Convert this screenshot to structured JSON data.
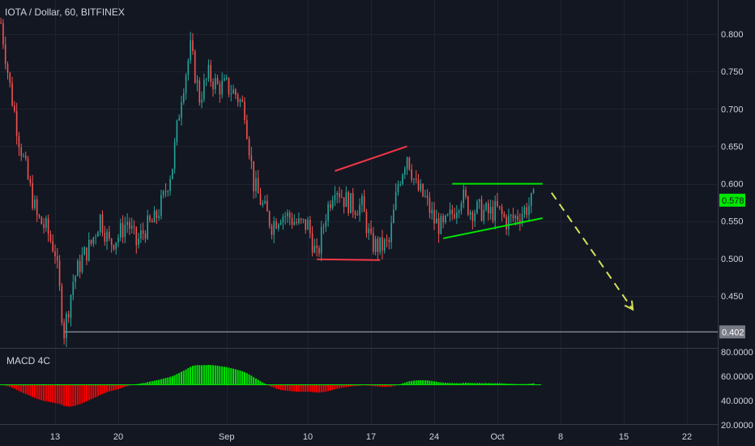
{
  "header": {
    "symbol_title": "IOTA / Dollar, 60, BITFINEX"
  },
  "chart_data": [
    {
      "type": "candlestick",
      "title": "IOTA / Dollar, 60, BITFINEX",
      "ylim": [
        0.375,
        0.827
      ],
      "y_ticks": [
        "0.800",
        "0.750",
        "0.700",
        "0.650",
        "0.600",
        "0.550",
        "0.500",
        "0.450"
      ],
      "x_ticks": [
        "13",
        "20",
        "Sep",
        "10",
        "17",
        "24",
        "Oct",
        "8",
        "15",
        "22"
      ],
      "grid": true,
      "price_path": [
        [
          "Aug 7",
          0.815
        ],
        [
          "Aug 8",
          0.73
        ],
        [
          "Aug 9",
          0.66
        ],
        [
          "Aug 10",
          0.605
        ],
        [
          "Aug 11",
          0.555
        ],
        [
          "Aug 12",
          0.54
        ],
        [
          "Aug 13",
          0.51
        ],
        [
          "Aug 14",
          0.402
        ],
        [
          "Aug 15",
          0.47
        ],
        [
          "Aug 16",
          0.5
        ],
        [
          "Aug 17",
          0.52
        ],
        [
          "Aug 18",
          0.555
        ],
        [
          "Aug 19",
          0.52
        ],
        [
          "Aug 20",
          0.53
        ],
        [
          "Aug 21",
          0.55
        ],
        [
          "Aug 22",
          0.52
        ],
        [
          "Aug 23",
          0.54
        ],
        [
          "Aug 24",
          0.55
        ],
        [
          "Aug 25",
          0.58
        ],
        [
          "Aug 26",
          0.625
        ],
        [
          "Aug 27",
          0.72
        ],
        [
          "Aug 28",
          0.78
        ],
        [
          "Aug 29",
          0.715
        ],
        [
          "Aug 30",
          0.745
        ],
        [
          "Aug 31",
          0.73
        ],
        [
          "Sep 1",
          0.73
        ],
        [
          "Sep 2",
          0.72
        ],
        [
          "Sep 3",
          0.7
        ],
        [
          "Sep 4",
          0.6
        ],
        [
          "Sep 5",
          0.57
        ],
        [
          "Sep 6",
          0.545
        ],
        [
          "Sep 7",
          0.56
        ],
        [
          "Sep 8",
          0.555
        ],
        [
          "Sep 9",
          0.545
        ],
        [
          "Sep 10",
          0.545
        ],
        [
          "Sep 11",
          0.5
        ],
        [
          "Sep 12",
          0.56
        ],
        [
          "Sep 13",
          0.6
        ],
        [
          "Sep 14",
          0.58
        ],
        [
          "Sep 15",
          0.57
        ],
        [
          "Sep 16",
          0.57
        ],
        [
          "Sep 17",
          0.52
        ],
        [
          "Sep 18",
          0.515
        ],
        [
          "Sep 19",
          0.52
        ],
        [
          "Sep 20",
          0.6
        ],
        [
          "Sep 21",
          0.64
        ],
        [
          "Sep 22",
          0.595
        ],
        [
          "Sep 23",
          0.58
        ],
        [
          "Sep 24",
          0.55
        ],
        [
          "Sep 25",
          0.54
        ],
        [
          "Sep 26",
          0.56
        ],
        [
          "Sep 27",
          0.585
        ],
        [
          "Sep 28",
          0.565
        ],
        [
          "Sep 29",
          0.565
        ],
        [
          "Sep 30",
          0.56
        ],
        [
          "Oct 1",
          0.565
        ],
        [
          "Oct 2",
          0.55
        ],
        [
          "Oct 3",
          0.555
        ],
        [
          "Oct 4",
          0.565
        ],
        [
          "Oct 5",
          0.578
        ]
      ],
      "current_price_label": "0.578",
      "low_label": "0.402",
      "drawings": [
        {
          "name": "broadening-top-line",
          "color": "#f23645",
          "points": [
            [
              "Sep 13",
              0.617
            ],
            [
              "Sep 21",
              0.65
            ]
          ]
        },
        {
          "name": "broadening-bottom-line",
          "color": "#f23645",
          "points": [
            [
              "Sep 11",
              0.499
            ],
            [
              "Sep 18",
              0.498
            ]
          ]
        },
        {
          "name": "triangle-top-line",
          "color": "#00e600",
          "points": [
            [
              "Sep 26",
              0.6
            ],
            [
              "Oct 6",
              0.6
            ]
          ]
        },
        {
          "name": "triangle-bottom-line",
          "color": "#00e600",
          "points": [
            [
              "Sep 25",
              0.527
            ],
            [
              "Oct 6",
              0.554
            ]
          ]
        },
        {
          "name": "projection-arrow",
          "color": "#d4e157",
          "points": [
            [
              "Oct 7",
              0.588
            ],
            [
              "Oct 16",
              0.432
            ]
          ]
        }
      ],
      "low_line_value": 0.402,
      "colors": {
        "up": "#26a69a",
        "down": "#ef5350",
        "accent": "#00e600",
        "background": "#131722"
      }
    },
    {
      "type": "histogram",
      "title": "MACD 4C",
      "ylim": [
        18,
        83
      ],
      "y_ticks": [
        "80.0000",
        "60.0000",
        "40.0000",
        "20.0000"
      ],
      "baseline": 53,
      "colors": {
        "positive": "#00e600",
        "negative": "#ff0000"
      }
    }
  ]
}
